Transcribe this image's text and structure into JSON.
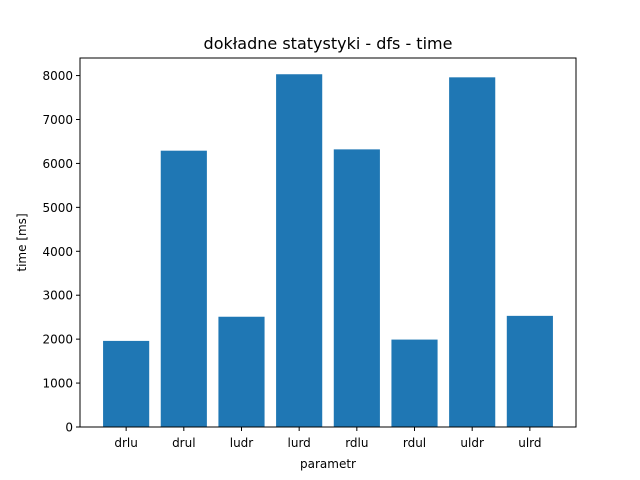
{
  "chart_data": {
    "type": "bar",
    "title": "dokładne statystyki - dfs - time",
    "xlabel": "parametr",
    "ylabel": "time [ms]",
    "categories": [
      "drlu",
      "drul",
      "ludr",
      "lurd",
      "rdlu",
      "rdul",
      "uldr",
      "ulrd"
    ],
    "values": [
      1960,
      6290,
      2510,
      8030,
      6320,
      1990,
      7960,
      2530
    ],
    "ylim": [
      0,
      8400
    ],
    "yticks": [
      0,
      1000,
      2000,
      3000,
      4000,
      5000,
      6000,
      7000,
      8000
    ],
    "ytick_labels": [
      "0",
      "1000",
      "2000",
      "3000",
      "4000",
      "5000",
      "6000",
      "7000",
      "8000"
    ],
    "grid": false,
    "bar_color": "#1f77b4"
  }
}
